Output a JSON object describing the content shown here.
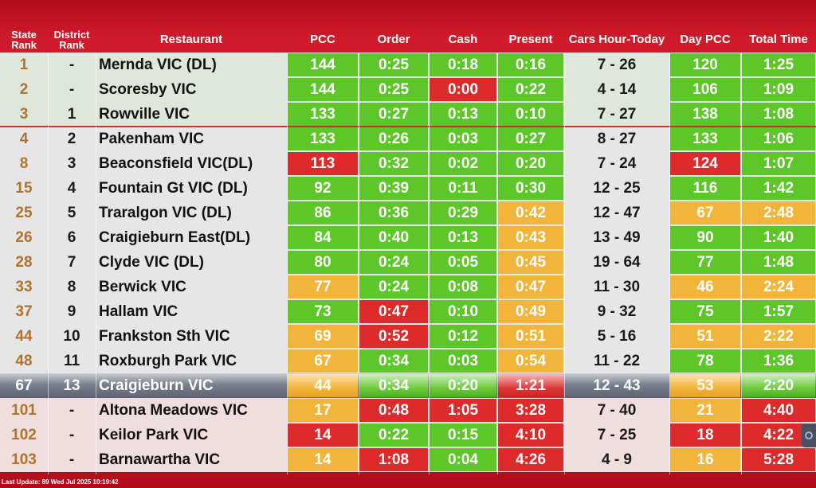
{
  "headers": {
    "state_rank": "State Rank",
    "district_rank": "District Rank",
    "restaurant": "Restaurant",
    "pcc": "PCC",
    "order": "Order",
    "cash": "Cash",
    "present": "Present",
    "cars": "Cars Hour-Today",
    "day_pcc": "Day PCC",
    "total": "Total Time"
  },
  "rows": [
    {
      "state": "1",
      "district": "-",
      "name": "Mernda VIC (DL)",
      "pcc": "144",
      "order": "0:25",
      "cash": "0:18",
      "present": "0:16",
      "cars": "7 - 26",
      "day_pcc": "120",
      "total": "1:25"
    },
    {
      "state": "2",
      "district": "-",
      "name": "Scoresby VIC",
      "pcc": "144",
      "order": "0:25",
      "cash": "0:00",
      "present": "0:22",
      "cars": "4 - 14",
      "day_pcc": "106",
      "total": "1:09"
    },
    {
      "state": "3",
      "district": "1",
      "name": "Rowville VIC",
      "pcc": "133",
      "order": "0:27",
      "cash": "0:13",
      "present": "0:10",
      "cars": "7 - 27",
      "day_pcc": "138",
      "total": "1:08"
    },
    {
      "state": "4",
      "district": "2",
      "name": "Pakenham VIC",
      "pcc": "133",
      "order": "0:26",
      "cash": "0:03",
      "present": "0:27",
      "cars": "8 - 27",
      "day_pcc": "133",
      "total": "1:06"
    },
    {
      "state": "8",
      "district": "3",
      "name": "Beaconsfield VIC(DL)",
      "pcc": "113",
      "order": "0:32",
      "cash": "0:02",
      "present": "0:20",
      "cars": "7 - 24",
      "day_pcc": "124",
      "total": "1:07"
    },
    {
      "state": "15",
      "district": "4",
      "name": "Fountain Gt VIC (DL)",
      "pcc": "92",
      "order": "0:39",
      "cash": "0:11",
      "present": "0:30",
      "cars": "12 - 25",
      "day_pcc": "116",
      "total": "1:42"
    },
    {
      "state": "25",
      "district": "5",
      "name": "Traralgon VIC (DL)",
      "pcc": "86",
      "order": "0:36",
      "cash": "0:29",
      "present": "0:42",
      "cars": "12 - 47",
      "day_pcc": "67",
      "total": "2:48"
    },
    {
      "state": "26",
      "district": "6",
      "name": "Craigieburn East(DL)",
      "pcc": "84",
      "order": "0:40",
      "cash": "0:13",
      "present": "0:43",
      "cars": "13 - 49",
      "day_pcc": "90",
      "total": "1:40"
    },
    {
      "state": "28",
      "district": "7",
      "name": "Clyde VIC (DL)",
      "pcc": "80",
      "order": "0:24",
      "cash": "0:05",
      "present": "0:45",
      "cars": "19 - 64",
      "day_pcc": "77",
      "total": "1:48"
    },
    {
      "state": "33",
      "district": "8",
      "name": "Berwick VIC",
      "pcc": "77",
      "order": "0:24",
      "cash": "0:08",
      "present": "0:47",
      "cars": "11 - 30",
      "day_pcc": "46",
      "total": "2:24"
    },
    {
      "state": "37",
      "district": "9",
      "name": "Hallam VIC",
      "pcc": "73",
      "order": "0:47",
      "cash": "0:10",
      "present": "0:49",
      "cars": "9 - 32",
      "day_pcc": "75",
      "total": "1:57"
    },
    {
      "state": "44",
      "district": "10",
      "name": "Frankston Sth VIC",
      "pcc": "69",
      "order": "0:52",
      "cash": "0:12",
      "present": "0:51",
      "cars": "5 - 16",
      "day_pcc": "51",
      "total": "2:22"
    },
    {
      "state": "48",
      "district": "11",
      "name": "Roxburgh Park VIC",
      "pcc": "67",
      "order": "0:34",
      "cash": "0:03",
      "present": "0:54",
      "cars": "11 - 22",
      "day_pcc": "78",
      "total": "1:36"
    },
    {
      "state": "67",
      "district": "13",
      "name": "Craigieburn VIC",
      "pcc": "44",
      "order": "0:34",
      "cash": "0:20",
      "present": "1:21",
      "cars": "12 - 43",
      "day_pcc": "53",
      "total": "2:20"
    },
    {
      "state": "101",
      "district": "-",
      "name": "Altona Meadows VIC",
      "pcc": "17",
      "order": "0:48",
      "cash": "1:05",
      "present": "3:28",
      "cars": "7 - 40",
      "day_pcc": "21",
      "total": "4:40"
    },
    {
      "state": "102",
      "district": "-",
      "name": "Keilor Park VIC",
      "pcc": "14",
      "order": "0:22",
      "cash": "0:15",
      "present": "4:10",
      "cars": "7 - 25",
      "day_pcc": "18",
      "total": "4:22"
    },
    {
      "state": "103",
      "district": "-",
      "name": "Barnawartha VIC",
      "pcc": "14",
      "order": "1:08",
      "cash": "0:04",
      "present": "4:26",
      "cars": "4 - 9",
      "day_pcc": "16",
      "total": "5:28"
    }
  ],
  "footer": {
    "last_update": "Last Update: 89 Wed Jul 2025 10:19:42"
  },
  "icons": {
    "side_button": "circle-icon"
  },
  "colors": {
    "good": "#5dc628",
    "warn": "#f2b53a",
    "bad": "#de2a2a",
    "background": "#c8102e"
  }
}
